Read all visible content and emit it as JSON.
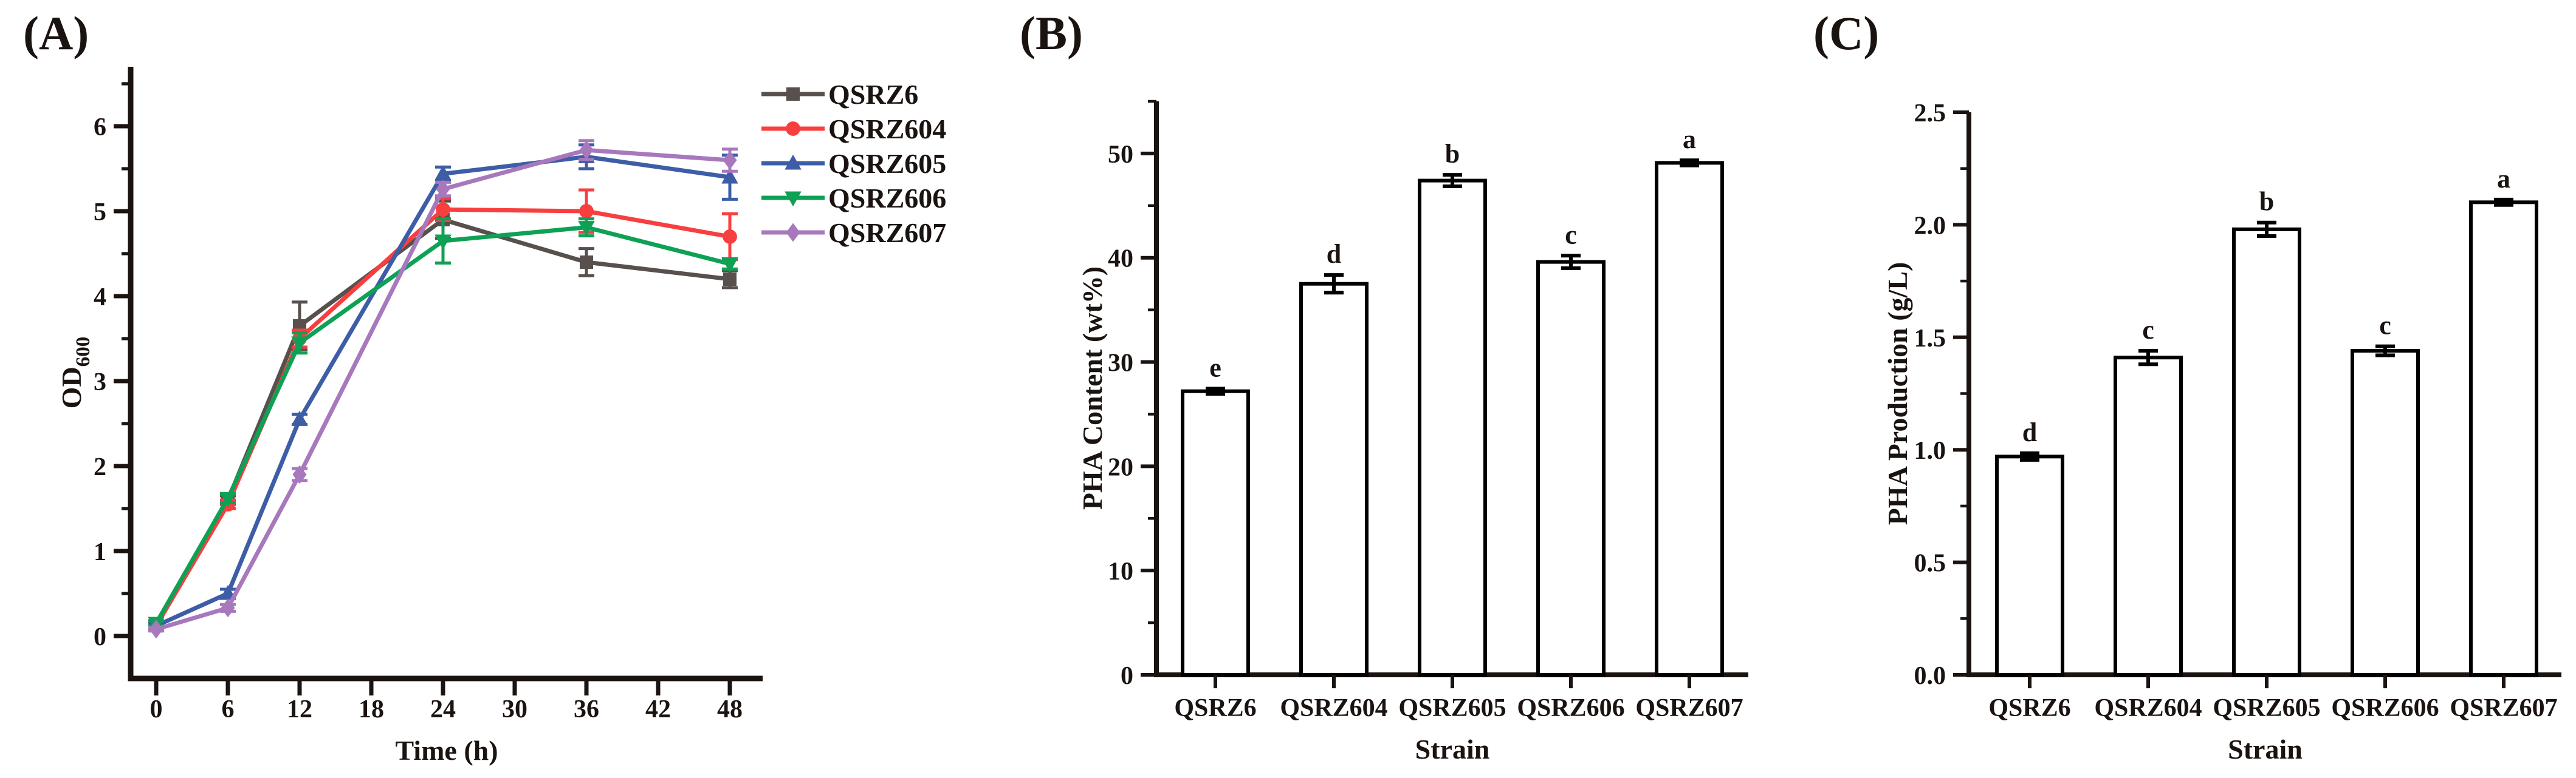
{
  "figure": {
    "background": "#ffffff",
    "ink_color": "#1a1310"
  },
  "chart_data": [
    {
      "panel_label": "(A)",
      "type": "line",
      "title": "",
      "xlabel": "Time (h)",
      "ylabel": "OD",
      "ylabel_subscript": "600",
      "x": [
        0,
        6,
        12,
        24,
        36,
        48
      ],
      "xticks": [
        0,
        6,
        12,
        18,
        24,
        30,
        36,
        42,
        48
      ],
      "ylim": [
        -0.5,
        6.7
      ],
      "yticks": [
        0,
        1,
        2,
        3,
        4,
        5,
        6
      ],
      "ytick_minor_step": 0.5,
      "ytick_decimals": 0,
      "grid": false,
      "legend_position": "outside-right-top",
      "series": [
        {
          "name": "QSRZ6",
          "color": "#57504d",
          "marker": "square",
          "values": [
            0.12,
            1.6,
            3.65,
            4.9,
            4.4,
            4.2
          ],
          "errors": [
            0.03,
            0.05,
            0.28,
            0.22,
            0.16,
            0.1
          ]
        },
        {
          "name": "QSRZ604",
          "color": "#f83f3f",
          "marker": "circle",
          "values": [
            0.12,
            1.55,
            3.5,
            5.02,
            5.0,
            4.7
          ],
          "errors": [
            0.03,
            0.05,
            0.1,
            0.13,
            0.25,
            0.27
          ]
        },
        {
          "name": "QSRZ605",
          "color": "#3d5da7",
          "marker": "triangle-up",
          "values": [
            0.12,
            0.5,
            2.55,
            5.44,
            5.64,
            5.4
          ],
          "errors": [
            0.03,
            0.05,
            0.06,
            0.08,
            0.14,
            0.26
          ]
        },
        {
          "name": "QSRZ606",
          "color": "#0ea155",
          "marker": "triangle-down",
          "values": [
            0.15,
            1.62,
            3.45,
            4.65,
            4.81,
            4.38
          ],
          "errors": [
            0.03,
            0.05,
            0.12,
            0.26,
            0.1,
            0.06
          ]
        },
        {
          "name": "QSRZ607",
          "color": "#a878bd",
          "marker": "diamond",
          "values": [
            0.08,
            0.33,
            1.9,
            5.26,
            5.72,
            5.6
          ],
          "errors": [
            0.02,
            0.04,
            0.07,
            0.08,
            0.11,
            0.13
          ]
        }
      ]
    },
    {
      "panel_label": "(B)",
      "type": "bar",
      "title": "",
      "xlabel": "Strain",
      "ylabel": "PHA Content (wt%)",
      "categories": [
        "QSRZ6",
        "QSRZ604",
        "QSRZ605",
        "QSRZ606",
        "QSRZ607"
      ],
      "values": [
        27.2,
        37.5,
        47.4,
        39.6,
        49.1
      ],
      "errors": [
        0.25,
        0.85,
        0.55,
        0.6,
        0.25
      ],
      "sig_letters": [
        "e",
        "d",
        "b",
        "c",
        "a"
      ],
      "ylim": [
        0,
        55
      ],
      "yticks": [
        0,
        10,
        20,
        30,
        40,
        50
      ],
      "ytick_minor_step": 5,
      "ytick_decimals": 0,
      "bar_fill": "#ffffff",
      "bar_stroke": "#000000",
      "grid": false
    },
    {
      "panel_label": "(C)",
      "type": "bar",
      "title": "",
      "xlabel": "Strain",
      "ylabel": "PHA Production (g/L)",
      "categories": [
        "QSRZ6",
        "QSRZ604",
        "QSRZ605",
        "QSRZ606",
        "QSRZ607"
      ],
      "values": [
        0.97,
        1.41,
        1.98,
        1.44,
        2.1
      ],
      "errors": [
        0.015,
        0.03,
        0.03,
        0.02,
        0.012
      ],
      "sig_letters": [
        "d",
        "c",
        "b",
        "c",
        "a"
      ],
      "ylim": [
        0,
        2.5
      ],
      "yticks": [
        0.0,
        0.5,
        1.0,
        1.5,
        2.0,
        2.5
      ],
      "ytick_minor_step": 0.25,
      "ytick_decimals": 1,
      "bar_fill": "#ffffff",
      "bar_stroke": "#000000",
      "grid": false
    }
  ]
}
